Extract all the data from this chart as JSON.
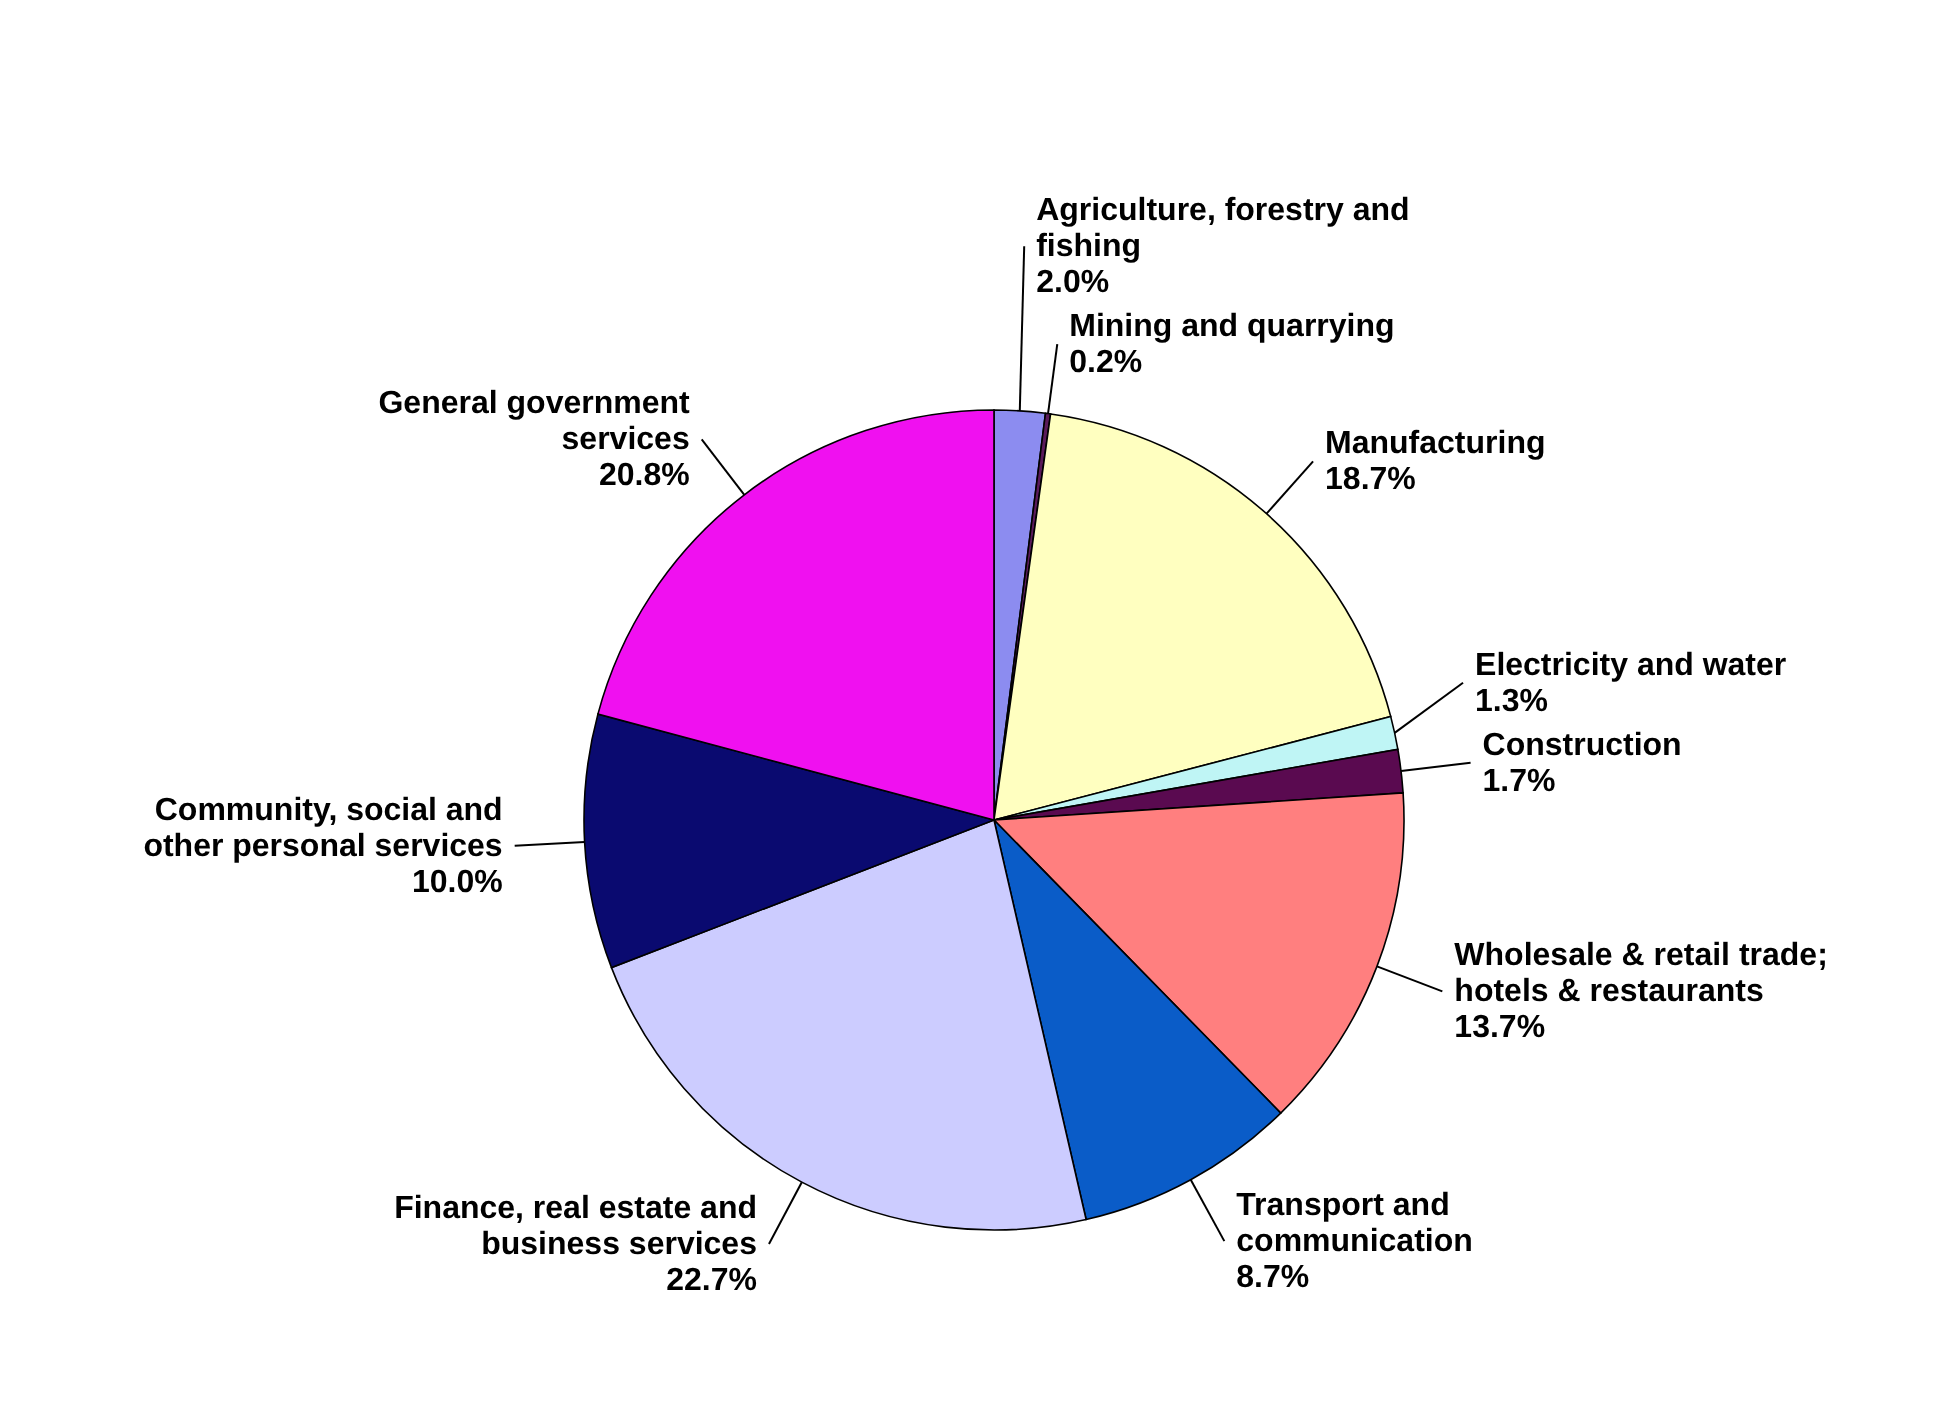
{
  "chart_data": {
    "type": "pie",
    "categories": [
      "Agriculture, forestry and fishing",
      "Mining and quarrying",
      "Manufacturing",
      "Electricity and water",
      "Construction",
      "Wholesale & retail trade; hotels & restaurants",
      "Transport and communication",
      "Finance, real estate and business services",
      "Community, social and other personal services",
      "General government services"
    ],
    "values": [
      2.0,
      0.2,
      18.7,
      1.3,
      1.7,
      13.7,
      8.7,
      22.7,
      10.0,
      20.8
    ],
    "value_labels": [
      "2.0%",
      "0.2%",
      "18.7%",
      "1.3%",
      "1.7%",
      "13.7%",
      "8.7%",
      "22.7%",
      "10.0%",
      "20.8%"
    ],
    "colors": [
      "#8c8cf0",
      "#5a1a5a",
      "#ffffc0",
      "#bff5f5",
      "#5a0a50",
      "#ff7f7f",
      "#0a5cc8",
      "#ccccff",
      "#0a0a70",
      "#f010f0"
    ]
  }
}
